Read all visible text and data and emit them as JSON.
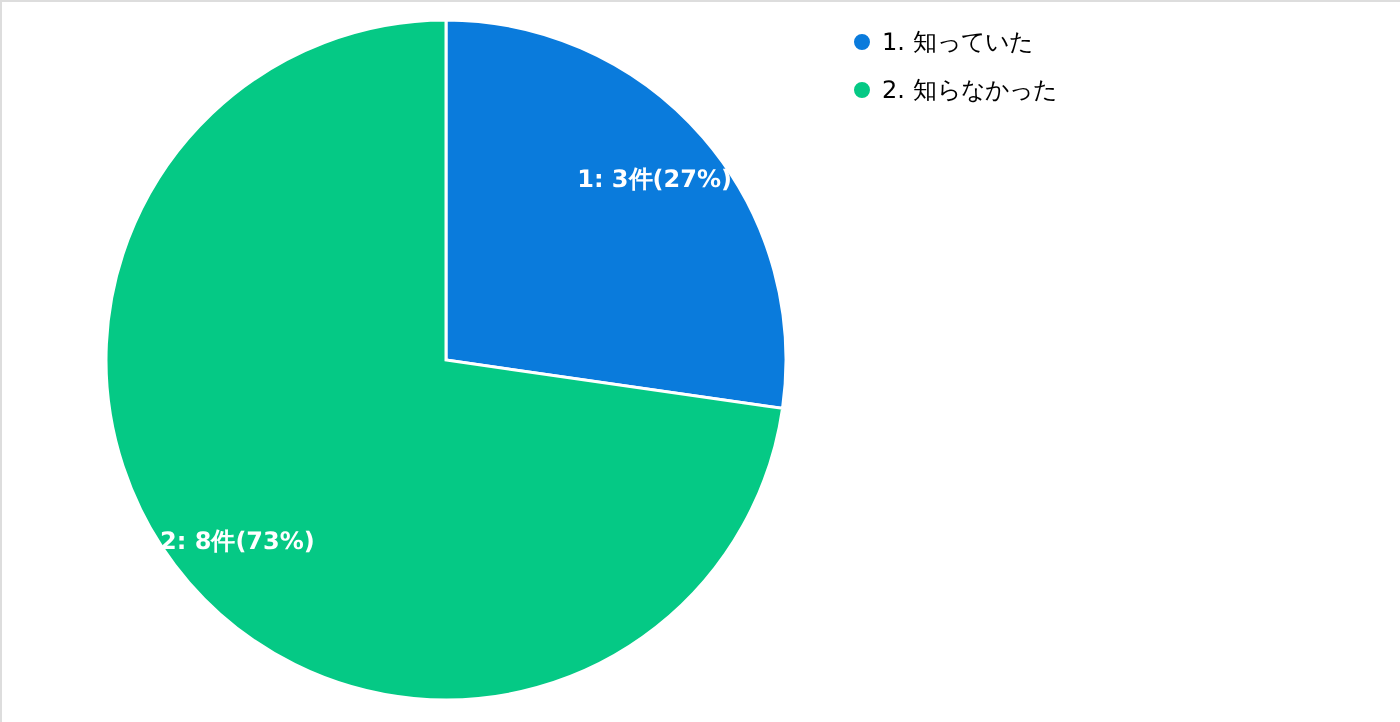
{
  "chart_data": {
    "type": "pie",
    "categories": [
      "1. 知っていた",
      "2. 知らなかった"
    ],
    "values": [
      3,
      8
    ],
    "colors": [
      "#0a7bdc",
      "#05c985"
    ],
    "value_labels": [
      "1: 3件(27%)",
      "2: 8件(73%)"
    ],
    "legend": "top right"
  }
}
